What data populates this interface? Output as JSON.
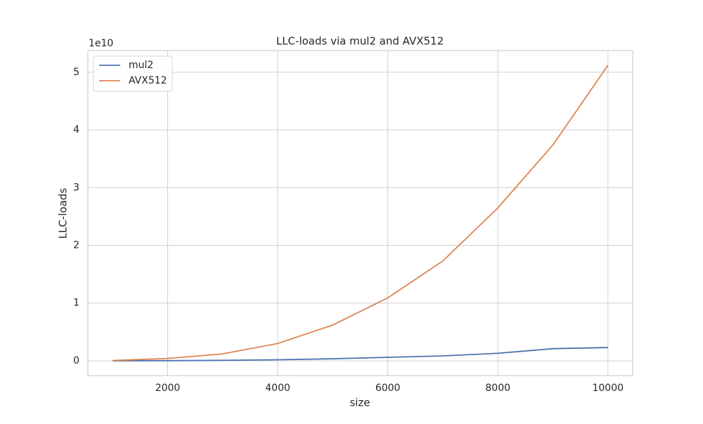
{
  "chart_data": {
    "type": "line",
    "title": "LLC-loads via mul2 and AVX512",
    "x_label": "size",
    "y_label": "LLC-loads",
    "y_offset_label": "1e10",
    "x": [
      1000,
      2000,
      3000,
      4000,
      5000,
      6000,
      7000,
      8000,
      9000,
      10000
    ],
    "series": [
      {
        "name": "mul2",
        "color": "#4c72b0",
        "values": [
          3000000,
          20000000,
          80000000,
          180000000,
          350000000,
          600000000,
          850000000,
          1300000000,
          2100000000,
          2300000000
        ]
      },
      {
        "name": "AVX512",
        "color": "#dd8452",
        "values": [
          50000000,
          400000000,
          1200000000,
          3000000000,
          6200000000,
          10900000000,
          17300000000,
          26500000000,
          37400000000,
          51200000000
        ]
      }
    ],
    "xlim": [
      550,
      10450
    ],
    "ylim": [
      -2560000000,
      53760000000
    ],
    "xticks": [
      2000,
      4000,
      6000,
      8000,
      10000
    ],
    "yticks": [
      {
        "value": 0,
        "label": "0"
      },
      {
        "value": 10000000000,
        "label": "1"
      },
      {
        "value": 20000000000,
        "label": "2"
      },
      {
        "value": 30000000000,
        "label": "3"
      },
      {
        "value": 40000000000,
        "label": "4"
      },
      {
        "value": 50000000000,
        "label": "5"
      }
    ],
    "grid": true,
    "legend": "upper left"
  }
}
